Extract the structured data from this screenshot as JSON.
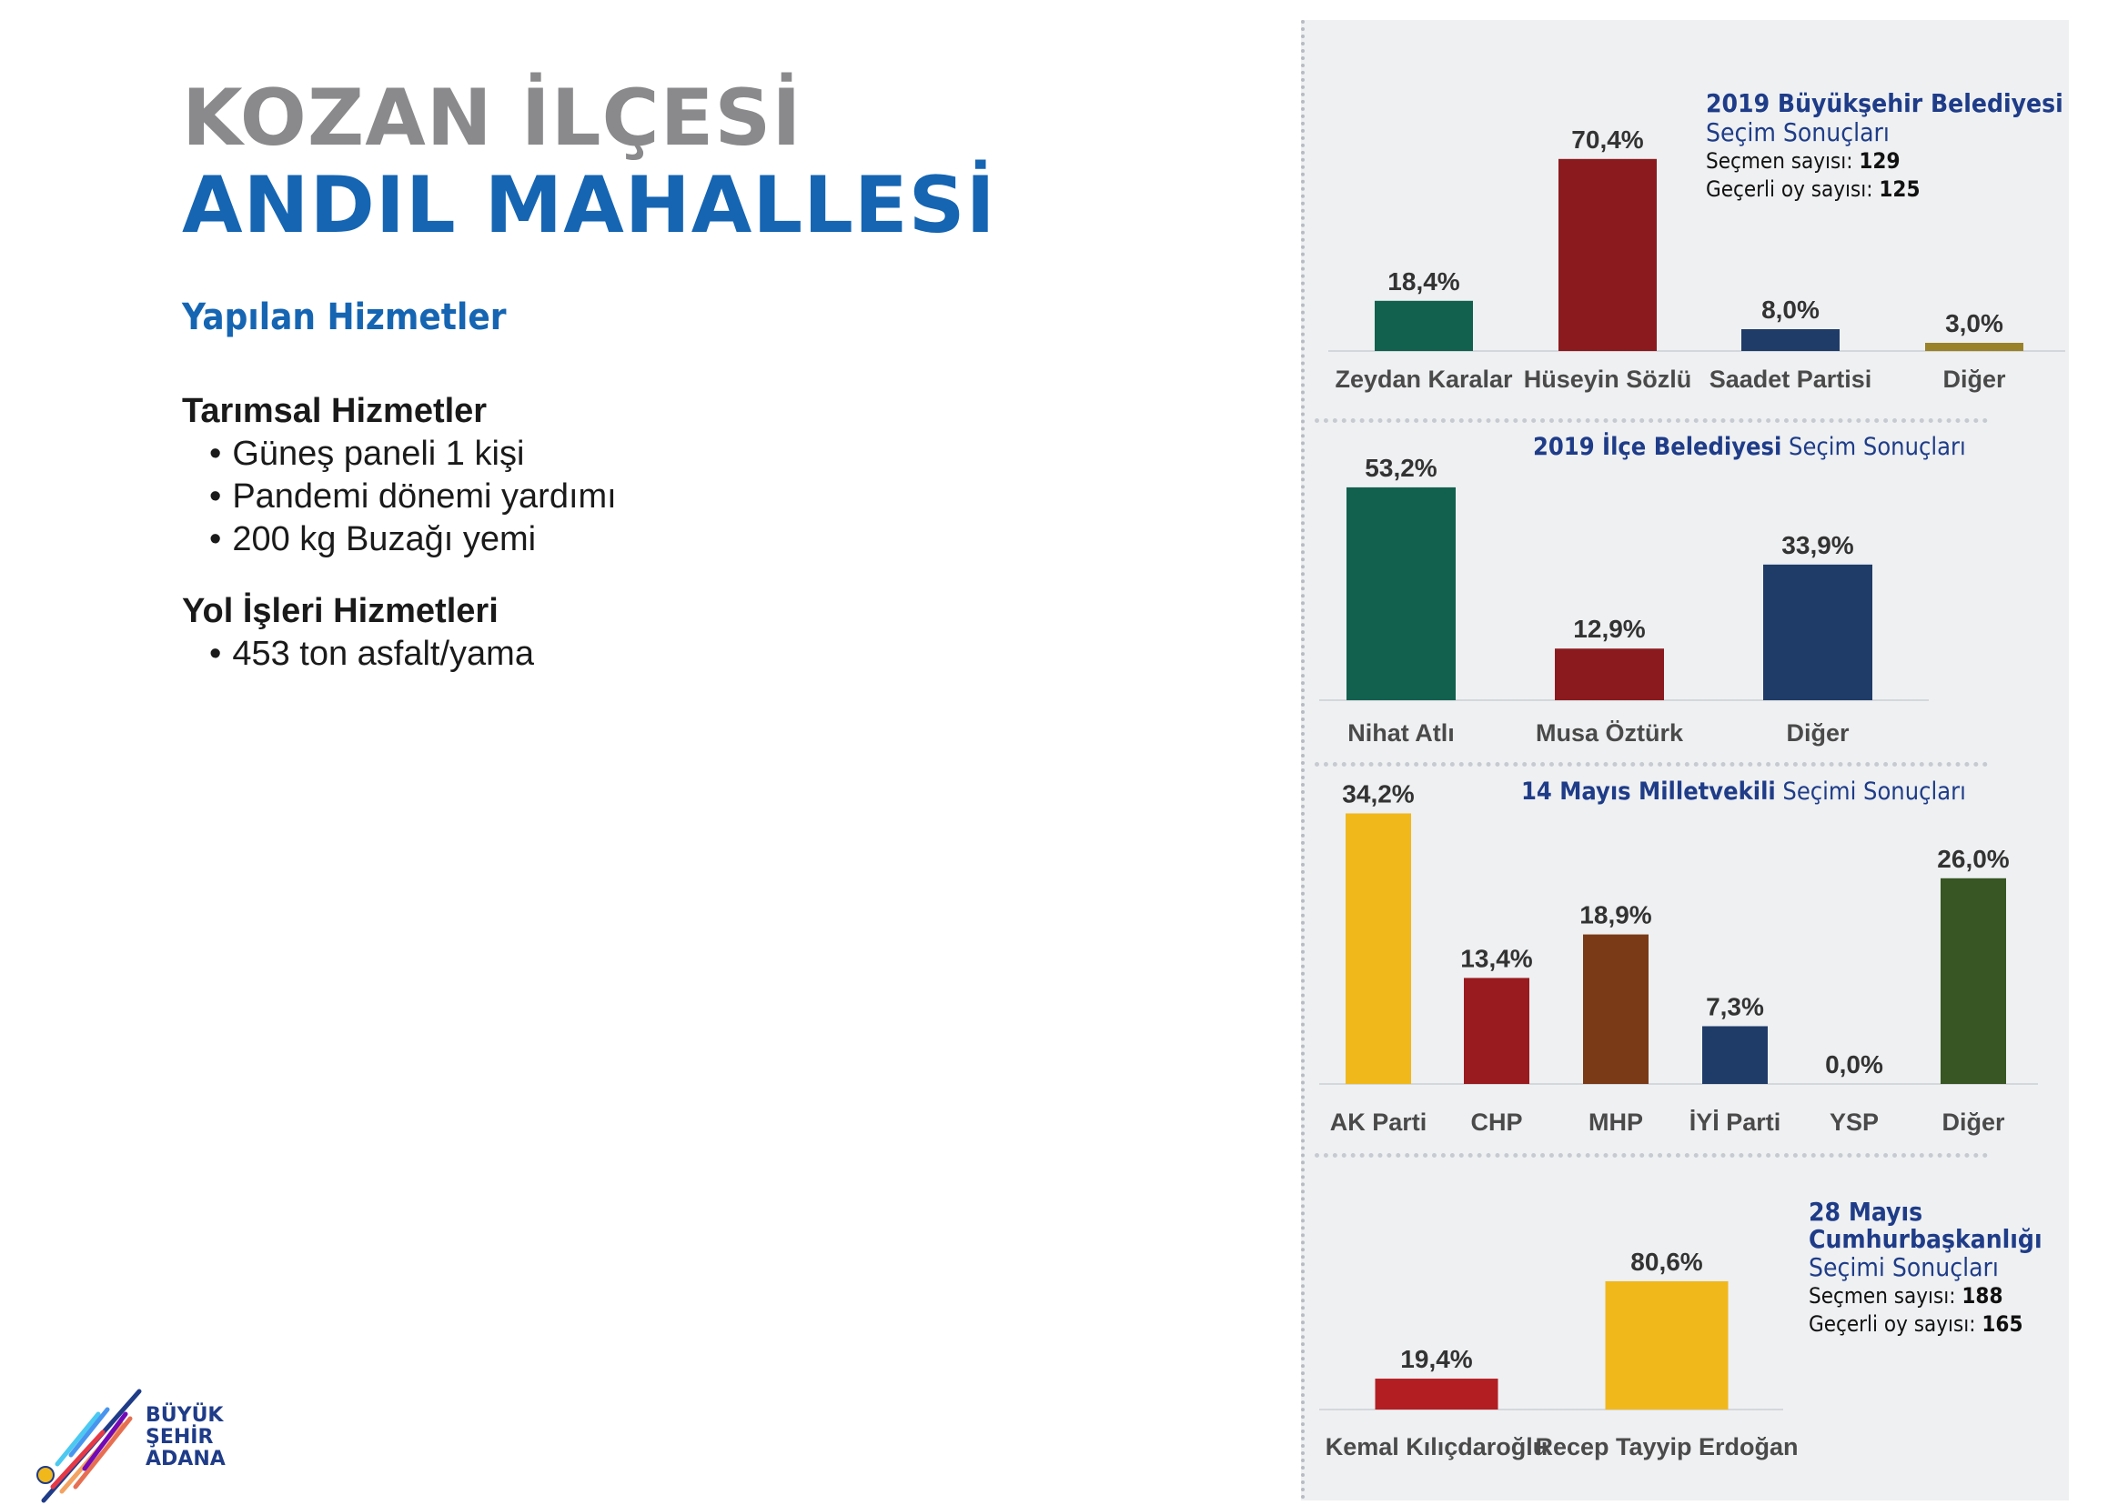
{
  "header": {
    "line1": "KOZAN İLÇESİ",
    "line2": "ANDIL MAHALLESİ"
  },
  "services": {
    "heading": "Yapılan Hizmetler",
    "groups": [
      {
        "title": "Tarımsal Hizmetler",
        "items": [
          "Güneş paneli 1 kişi",
          "Pandemi dönemi yardımı",
          "200 kg Buzağı yemi"
        ]
      },
      {
        "title": "Yol İşleri Hizmetleri",
        "items": [
          "453 ton asfalt/yama"
        ]
      }
    ]
  },
  "logo": {
    "line1": "BÜYÜK",
    "line2": "ŞEHİR",
    "line3": "ADANA"
  },
  "chart_titles": {
    "c1": {
      "bold": "2019 Büyükşehir Belediyesi",
      "rest": "Seçim Sonuçları",
      "voters_label": "Seçmen sayısı:",
      "voters": "129",
      "valid_label": "Geçerli oy sayısı:",
      "valid": "125"
    },
    "c2": {
      "bold": "2019 İlçe Belediyesi",
      "rest": "Seçim Sonuçları"
    },
    "c3": {
      "bold": "14 Mayıs Milletvekili",
      "rest": "Seçimi Sonuçları"
    },
    "c4": {
      "bold1": "28 Mayıs",
      "bold2": "Cumhurbaşkanlığı",
      "rest": "Seçimi Sonuçları",
      "voters_label": "Seçmen sayısı:",
      "voters": "188",
      "valid_label": "Geçerli oy sayısı:",
      "valid": "165"
    }
  },
  "chart_data": [
    {
      "type": "bar",
      "categories": [
        "Zeydan Karalar",
        "Hüseyin Sözlü",
        "Saadet Partisi",
        "Diğer"
      ],
      "values": [
        18.4,
        70.4,
        8.0,
        3.0
      ],
      "labels": [
        "18,4%",
        "70,4%",
        "8,0%",
        "3,0%"
      ],
      "colors": [
        "#12614f",
        "#8b1a1e",
        "#1f3c68",
        "#9a8229"
      ]
    },
    {
      "type": "bar",
      "categories": [
        "Nihat Atlı",
        "Musa Öztürk",
        "Diğer"
      ],
      "values": [
        53.2,
        12.9,
        33.9
      ],
      "labels": [
        "53,2%",
        "12,9%",
        "33,9%"
      ],
      "colors": [
        "#12614f",
        "#8b1a1e",
        "#1f3c68"
      ]
    },
    {
      "type": "bar",
      "categories": [
        "AK Parti",
        "CHP",
        "MHP",
        "İYİ Parti",
        "YSP",
        "Diğer"
      ],
      "values": [
        34.2,
        13.4,
        18.9,
        7.3,
        0.0,
        26.0
      ],
      "labels": [
        "34,2%",
        "13,4%",
        "18,9%",
        "7,3%",
        "0,0%",
        "26,0%"
      ],
      "colors": [
        "#f1b81c",
        "#991b1f",
        "#7a3a17",
        "#1f3c68",
        "#7b2a7a",
        "#385623"
      ]
    },
    {
      "type": "bar",
      "categories": [
        "Kemal Kılıçdaroğlu",
        "Recep Tayyip Erdoğan"
      ],
      "values": [
        19.4,
        80.6
      ],
      "labels": [
        "19,4%",
        "80,6%"
      ],
      "colors": [
        "#b31e23",
        "#f1b81c"
      ]
    }
  ]
}
